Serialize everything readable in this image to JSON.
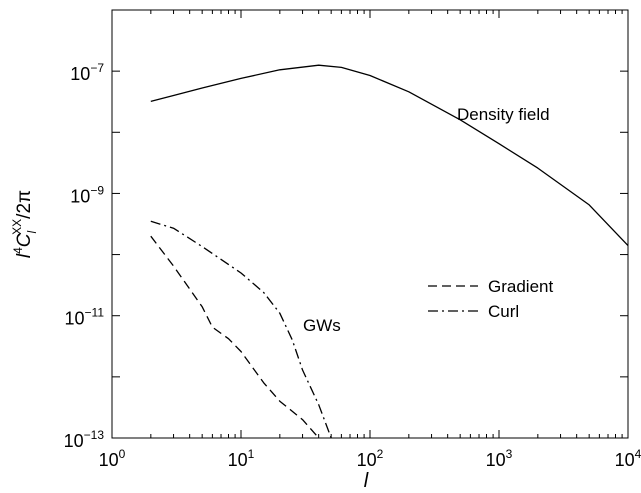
{
  "chart_data": {
    "type": "line",
    "xscale": "log",
    "yscale": "log",
    "xlim": [
      1,
      10000
    ],
    "ylim": [
      1e-13,
      1e-06
    ],
    "xlabel": "l",
    "ylabel": {
      "base": "l",
      "base_sup": "4",
      "C": "C",
      "C_sub": "l",
      "C_sup": "XX",
      "suffix": "/2π"
    },
    "xticks": [
      {
        "value": 1,
        "mant": "10",
        "exp": "0"
      },
      {
        "value": 10,
        "mant": "10",
        "exp": "1"
      },
      {
        "value": 100,
        "mant": "10",
        "exp": "2"
      },
      {
        "value": 1000,
        "mant": "10",
        "exp": "3"
      },
      {
        "value": 10000,
        "mant": "10",
        "exp": "4"
      }
    ],
    "yticks": [
      {
        "value": 1e-13,
        "mant": "10",
        "exp": "−13"
      },
      {
        "value": 1e-11,
        "mant": "10",
        "exp": "−11"
      },
      {
        "value": 1e-09,
        "mant": "10",
        "exp": "−9"
      },
      {
        "value": 1e-07,
        "mant": "10",
        "exp": "−7"
      }
    ],
    "grid": false,
    "legend_position": "center-right",
    "series": [
      {
        "name": "Density field",
        "style": "solid",
        "in_legend": false,
        "points": [
          [
            2,
            3.2e-08
          ],
          [
            3,
            4e-08
          ],
          [
            5,
            5.3e-08
          ],
          [
            10,
            7.6e-08
          ],
          [
            20,
            1.05e-07
          ],
          [
            40,
            1.25e-07
          ],
          [
            60,
            1.15e-07
          ],
          [
            100,
            8.5e-08
          ],
          [
            200,
            4.6e-08
          ],
          [
            500,
            1.6e-08
          ],
          [
            1000,
            6.5e-09
          ],
          [
            2000,
            2.6e-09
          ],
          [
            5000,
            6.5e-10
          ],
          [
            10000,
            1.4e-10
          ]
        ]
      },
      {
        "name": "Gradient",
        "style": "dashed",
        "in_legend": true,
        "points": [
          [
            2,
            2e-10
          ],
          [
            3,
            6.5e-11
          ],
          [
            5,
            1.4e-11
          ],
          [
            6,
            6.5e-12
          ],
          [
            8,
            4.2e-12
          ],
          [
            10,
            2.6e-12
          ],
          [
            15,
            8e-13
          ],
          [
            20,
            4e-13
          ],
          [
            30,
            2e-13
          ],
          [
            40,
            1e-13
          ]
        ]
      },
      {
        "name": "Curl",
        "style": "dashdot",
        "in_legend": true,
        "points": [
          [
            2,
            3.5e-10
          ],
          [
            3,
            2.7e-10
          ],
          [
            5,
            1.35e-10
          ],
          [
            10,
            5e-11
          ],
          [
            15,
            2.4e-11
          ],
          [
            20,
            1.1e-11
          ],
          [
            25,
            4e-12
          ],
          [
            30,
            1.3e-12
          ],
          [
            40,
            3.5e-13
          ],
          [
            50,
            1e-13
          ]
        ]
      }
    ],
    "annotations": [
      {
        "text": "Density field",
        "x": 480,
        "y": 5e-08
      },
      {
        "text": "GWs",
        "x": 25,
        "y": 1.3e-11
      }
    ]
  }
}
